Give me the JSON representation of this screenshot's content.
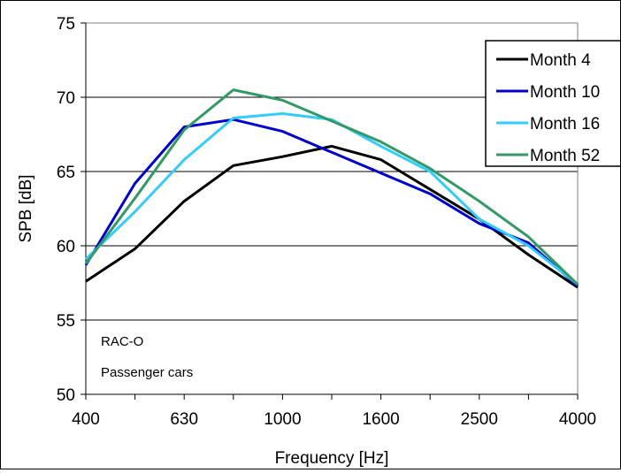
{
  "chart_data": {
    "type": "line",
    "title": "",
    "xlabel": "Frequency [Hz]",
    "ylabel": "SPB [dB]",
    "ylim": [
      50,
      75
    ],
    "yticks": [
      "50",
      "55",
      "60",
      "65",
      "70",
      "75"
    ],
    "grid": "horizontal",
    "legend_position": "top-right",
    "x": [
      "400",
      "500",
      "630",
      "800",
      "1000",
      "1250",
      "1600",
      "2000",
      "2500",
      "3150",
      "4000"
    ],
    "xtick_labels": [
      "400",
      "",
      "630",
      "",
      "1000",
      "",
      "1600",
      "",
      "2500",
      "",
      "4000"
    ],
    "series": [
      {
        "name": "Month 4",
        "color": "#000000",
        "values": [
          57.6,
          59.8,
          63.0,
          65.4,
          66.0,
          66.7,
          65.8,
          63.8,
          61.8,
          59.4,
          57.2
        ]
      },
      {
        "name": "Month 10",
        "color": "#0000CC",
        "values": [
          58.7,
          64.2,
          68.0,
          68.5,
          67.7,
          66.3,
          64.9,
          63.5,
          61.5,
          60.2,
          57.3
        ]
      },
      {
        "name": "Month 16",
        "color": "#33CCFF",
        "values": [
          59.1,
          62.3,
          65.8,
          68.6,
          68.9,
          68.5,
          66.7,
          65.0,
          61.8,
          60.0,
          57.4
        ]
      },
      {
        "name": "Month 52",
        "color": "#339966",
        "values": [
          58.8,
          63.2,
          67.8,
          70.5,
          69.8,
          68.4,
          67.0,
          65.2,
          63.0,
          60.6,
          57.4
        ]
      }
    ],
    "annotations": [
      "RAC-O",
      "Passenger cars"
    ]
  }
}
